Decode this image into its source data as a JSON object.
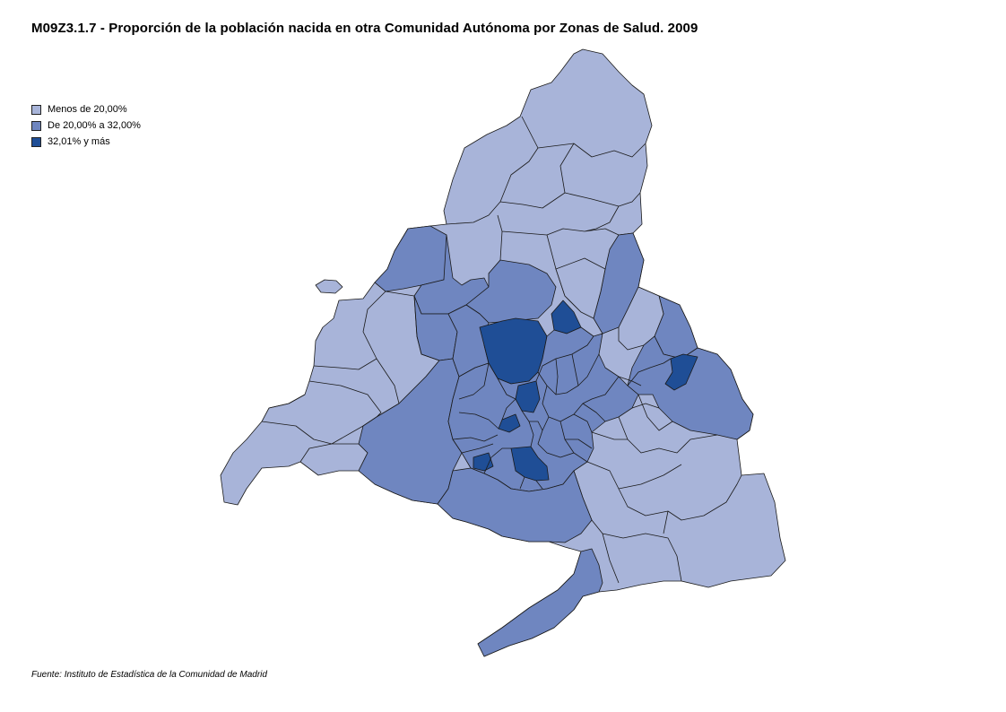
{
  "title": "M09Z3.1.7 - Proporción de la población nacida en otra Comunidad Autónoma por Zonas de Salud. 2009",
  "legend": {
    "items": [
      {
        "label": "Menos de 20,00%",
        "color": "#a8b4d9"
      },
      {
        "label": "De 20,00% a 32,00%",
        "color": "#6f86c0"
      },
      {
        "label": "32,01% y más",
        "color": "#1f4e96"
      }
    ]
  },
  "source": "Fuente: Instituto de Estadística de la Comunidad de Madrid",
  "colors": {
    "low": "#a8b4d9",
    "mid": "#6f86c0",
    "high": "#1f4e96",
    "border": "#1a1a1a"
  }
}
